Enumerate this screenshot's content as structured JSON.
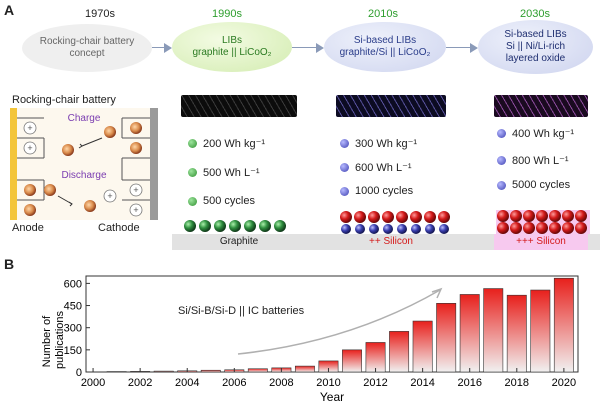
{
  "panel_a": {
    "letter": "A",
    "timeline": [
      {
        "year": "1970s",
        "line1": "Rocking-chair battery",
        "line2": "concept",
        "line3": ""
      },
      {
        "year": "1990s",
        "line1": "LIBs",
        "line2": "graphite || LiCoO₂",
        "line3": ""
      },
      {
        "year": "2010s",
        "line1": "Si-based LIBs",
        "line2": "graphite/Si || LiCoO₂",
        "line3": ""
      },
      {
        "year": "2030s",
        "line1": "Si-based LIBs",
        "line2": "Si || Ni/Li-rich",
        "line3": "layered oxide"
      }
    ],
    "rocking_chair": {
      "title": "Rocking-chair battery",
      "charge": "Charge",
      "discharge": "Discharge",
      "anode": "Anode",
      "cathode": "Cathode"
    },
    "stages": [
      {
        "energy_mass": "200 Wh kg⁻¹",
        "energy_volume": "500 Wh L⁻¹",
        "cycles": "500 cycles",
        "anode_label": "Graphite",
        "dot_color": "green"
      },
      {
        "energy_mass": "300 Wh kg⁻¹",
        "energy_volume": "600 Wh L⁻¹",
        "cycles": "1000 cycles",
        "anode_label": "++ Silicon",
        "dot_color": "blue"
      },
      {
        "energy_mass": "400 Wh kg⁻¹",
        "energy_volume": "800 Wh L⁻¹",
        "cycles": "5000 cycles",
        "anode_label": "+++ Silicon",
        "dot_color": "blue"
      }
    ],
    "colors": {
      "era_green": "#2e9e2e",
      "arrow": "#8a9ab8",
      "silicon_red": "#d41a1a"
    }
  },
  "panel_b": {
    "letter": "B",
    "annotation": "Si/Si-B/Si-D || IC batteries"
  },
  "chart_data": {
    "type": "bar",
    "xlabel": "Year",
    "ylabel": "Number of publications",
    "ylabel_lines": [
      "Number of",
      "publications"
    ],
    "xlim": [
      2000,
      2020
    ],
    "ylim": [
      0,
      650
    ],
    "xticks": [
      2000,
      2002,
      2004,
      2006,
      2008,
      2010,
      2012,
      2014,
      2016,
      2018,
      2020
    ],
    "yticks": [
      0,
      150,
      300,
      450,
      600
    ],
    "x": [
      2001,
      2002,
      2003,
      2004,
      2005,
      2006,
      2007,
      2008,
      2009,
      2010,
      2011,
      2012,
      2013,
      2014,
      2015,
      2016,
      2017,
      2018,
      2019,
      2020
    ],
    "values": [
      3,
      4,
      6,
      8,
      12,
      15,
      22,
      28,
      40,
      75,
      150,
      200,
      275,
      345,
      465,
      525,
      565,
      520,
      555,
      635
    ],
    "grid": false,
    "bar_color_top": "#e8201c",
    "bar_color_bottom": "#f1f1f1"
  }
}
